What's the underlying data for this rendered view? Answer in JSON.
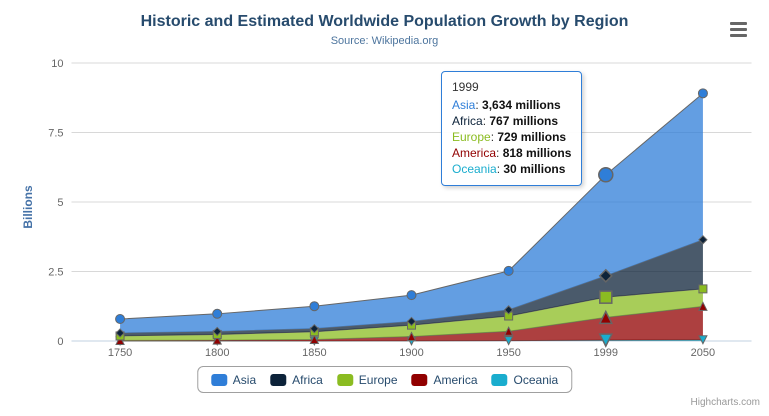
{
  "header": {
    "title": "Historic and Estimated Worldwide Population Growth by Region",
    "subtitle": "Source: Wikipedia.org"
  },
  "menu": {
    "icon": "hamburger-menu"
  },
  "tooltip": {
    "header": "1999",
    "rows": [
      {
        "label": "Asia",
        "value": "3,634 millions",
        "color": "#2f7ed8"
      },
      {
        "label": "Africa",
        "value": "767 millions",
        "color": "#0d233a"
      },
      {
        "label": "Europe",
        "value": "729 millions",
        "color": "#8bbc21"
      },
      {
        "label": "America",
        "value": "818 millions",
        "color": "#910000"
      },
      {
        "label": "Oceania",
        "value": "30 millions",
        "color": "#1aadce"
      }
    ]
  },
  "legend": {
    "items": [
      {
        "label": "Asia",
        "color": "#2f7ed8"
      },
      {
        "label": "Africa",
        "color": "#0d233a"
      },
      {
        "label": "Europe",
        "color": "#8bbc21"
      },
      {
        "label": "America",
        "color": "#910000"
      },
      {
        "label": "Oceania",
        "color": "#1aadce"
      }
    ]
  },
  "credits": "Highcharts.com",
  "chart_data": {
    "type": "area",
    "stacking": "normal",
    "title": "Historic and Estimated Worldwide Population Growth by Region",
    "subtitle": "Source: Wikipedia.org",
    "xlabel": "",
    "ylabel": "Billions",
    "ylim": [
      0,
      10
    ],
    "yticks": [
      0,
      2.5,
      5,
      7.5,
      10
    ],
    "grid": true,
    "legend_position": "bottom",
    "unit": "millions",
    "categories": [
      "1750",
      "1800",
      "1850",
      "1900",
      "1950",
      "1999",
      "2050"
    ],
    "series": [
      {
        "name": "Asia",
        "color": "#2f7ed8",
        "marker": "circle",
        "values": [
          502,
          635,
          809,
          947,
          1402,
          3634,
          5268
        ]
      },
      {
        "name": "Africa",
        "color": "#0d233a",
        "marker": "diamond",
        "values": [
          106,
          107,
          111,
          133,
          221,
          767,
          1766
        ]
      },
      {
        "name": "Europe",
        "color": "#8bbc21",
        "marker": "square",
        "values": [
          163,
          203,
          276,
          408,
          547,
          729,
          628
        ]
      },
      {
        "name": "America",
        "color": "#910000",
        "marker": "triangle",
        "values": [
          18,
          31,
          54,
          156,
          339,
          818,
          1201
        ]
      },
      {
        "name": "Oceania",
        "color": "#1aadce",
        "marker": "triangle-down",
        "values": [
          2,
          2,
          2,
          6,
          13,
          30,
          46
        ]
      }
    ],
    "hovered_category_index": 5,
    "axis_line_color": "#c0d0e0",
    "grid_line_color": "#d8d8d8",
    "series_line_color": "#666666"
  }
}
